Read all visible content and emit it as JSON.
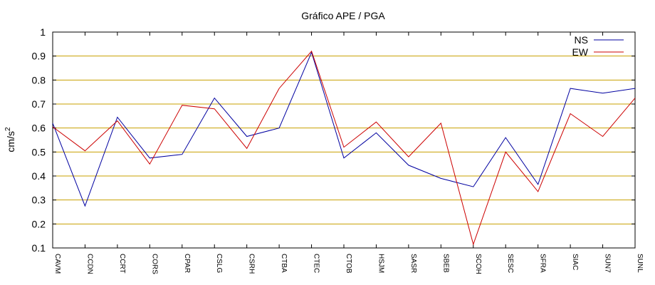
{
  "chart_data": {
    "type": "line",
    "title": "Gráfico  APE / PGA",
    "ylabel": "cm/s",
    "ylabel_superscript": "2",
    "xlabel": "",
    "ylim": [
      0.1,
      1.0
    ],
    "yticks": [
      "0.1",
      "0.2",
      "0.3",
      "0.4",
      "0.5",
      "0.6",
      "0.7",
      "0.8",
      "0.9",
      "1"
    ],
    "grid": "horizontal",
    "grid_color": "#c8a000",
    "legend_position": "top-right",
    "categories": [
      "CAVM",
      "CCDN",
      "CCRT",
      "CORS",
      "CPAR",
      "CSLG",
      "CSRH",
      "CTBA",
      "CTEC",
      "CTOB",
      "HSJM",
      "SASR",
      "SBEB",
      "SCOH",
      "SESC",
      "SFRA",
      "SIAC",
      "SUN7",
      "SUNL"
    ],
    "series": [
      {
        "name": "NS",
        "color": "#0000a0",
        "values": [
          0.62,
          0.275,
          0.645,
          0.475,
          0.49,
          0.725,
          0.565,
          0.6,
          0.915,
          0.475,
          0.58,
          0.445,
          0.39,
          0.355,
          0.56,
          0.365,
          0.765,
          0.745,
          0.765
        ]
      },
      {
        "name": "EW",
        "color": "#cc0000",
        "values": [
          0.605,
          0.505,
          0.63,
          0.45,
          0.695,
          0.68,
          0.515,
          0.765,
          0.92,
          0.52,
          0.625,
          0.48,
          0.62,
          0.115,
          0.5,
          0.335,
          0.66,
          0.565,
          0.725
        ]
      }
    ]
  }
}
